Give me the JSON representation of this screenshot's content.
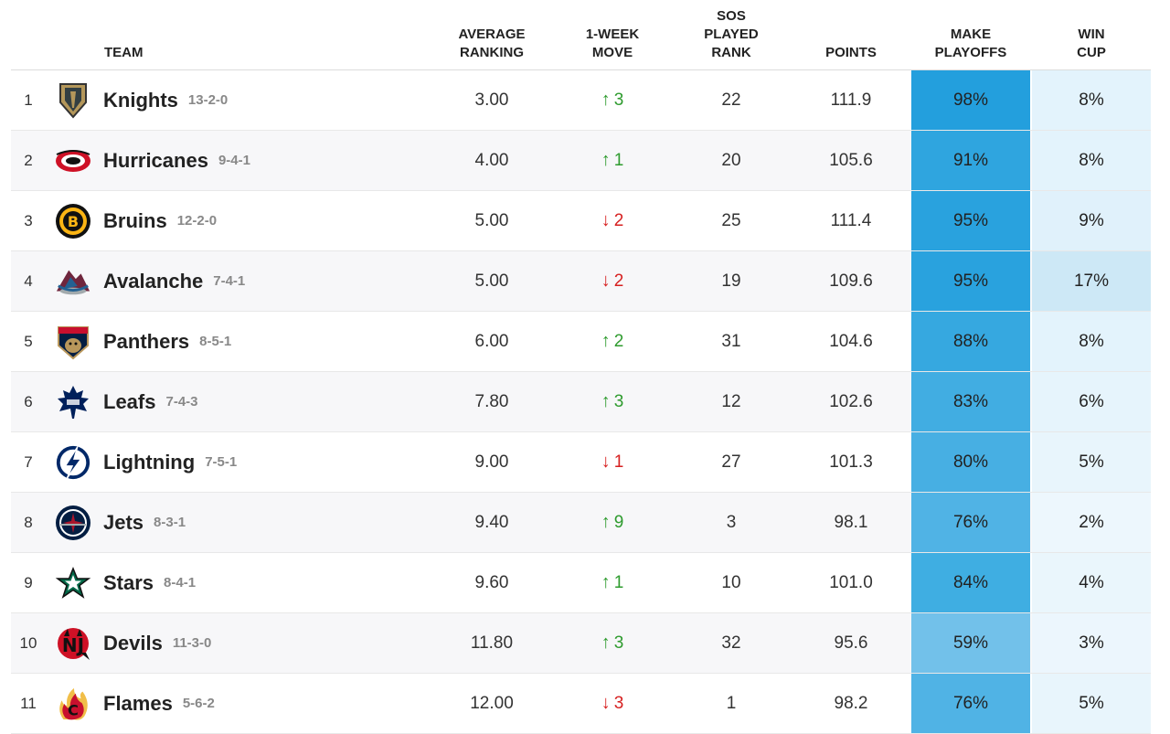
{
  "headers": {
    "team": "TEAM",
    "avg": [
      "AVERAGE",
      "RANKING"
    ],
    "move": [
      "1-WEEK",
      "MOVE"
    ],
    "sos": [
      "SOS",
      "PLAYED",
      "RANK"
    ],
    "points": "POINTS",
    "playoffs": [
      "MAKE",
      "PLAYOFFS"
    ],
    "cup": [
      "WIN",
      "CUP"
    ]
  },
  "rows": [
    {
      "rank": "1",
      "team": "Knights",
      "record": "13-2-0",
      "avg": "3.00",
      "dir": "up",
      "move": "3",
      "sos": "22",
      "points": "111.9",
      "playoffs": "98%",
      "playoffs_color": "#239fdd",
      "cup": "8%",
      "cup_color": "#e3f3fc",
      "icon": "knights-helmet-icon"
    },
    {
      "rank": "2",
      "team": "Hurricanes",
      "record": "9-4-1",
      "avg": "4.00",
      "dir": "up",
      "move": "1",
      "sos": "20",
      "points": "105.6",
      "playoffs": "91%",
      "playoffs_color": "#2fa5df",
      "cup": "8%",
      "cup_color": "#e3f3fc",
      "icon": "hurricanes-logo-icon"
    },
    {
      "rank": "3",
      "team": "Bruins",
      "record": "12-2-0",
      "avg": "5.00",
      "dir": "down",
      "move": "2",
      "sos": "25",
      "points": "111.4",
      "playoffs": "95%",
      "playoffs_color": "#29a2de",
      "cup": "9%",
      "cup_color": "#e0f1fb",
      "icon": "bruins-logo-icon"
    },
    {
      "rank": "4",
      "team": "Avalanche",
      "record": "7-4-1",
      "avg": "5.00",
      "dir": "down",
      "move": "2",
      "sos": "19",
      "points": "109.6",
      "playoffs": "95%",
      "playoffs_color": "#29a2de",
      "cup": "17%",
      "cup_color": "#cde8f6",
      "icon": "avalanche-logo-icon"
    },
    {
      "rank": "5",
      "team": "Panthers",
      "record": "8-5-1",
      "avg": "6.00",
      "dir": "up",
      "move": "2",
      "sos": "31",
      "points": "104.6",
      "playoffs": "88%",
      "playoffs_color": "#36a8e0",
      "cup": "8%",
      "cup_color": "#e3f3fc",
      "icon": "panthers-logo-icon"
    },
    {
      "rank": "6",
      "team": "Leafs",
      "record": "7-4-3",
      "avg": "7.80",
      "dir": "up",
      "move": "3",
      "sos": "12",
      "points": "102.6",
      "playoffs": "83%",
      "playoffs_color": "#41ade2",
      "cup": "6%",
      "cup_color": "#e6f4fc",
      "icon": "leafs-logo-icon"
    },
    {
      "rank": "7",
      "team": "Lightning",
      "record": "7-5-1",
      "avg": "9.00",
      "dir": "down",
      "move": "1",
      "sos": "27",
      "points": "101.3",
      "playoffs": "80%",
      "playoffs_color": "#47afe3",
      "cup": "5%",
      "cup_color": "#e8f5fc",
      "icon": "lightning-logo-icon"
    },
    {
      "rank": "8",
      "team": "Jets",
      "record": "8-3-1",
      "avg": "9.40",
      "dir": "up",
      "move": "9",
      "sos": "3",
      "points": "98.1",
      "playoffs": "76%",
      "playoffs_color": "#50b3e5",
      "cup": "2%",
      "cup_color": "#edf7fd",
      "icon": "jets-logo-icon"
    },
    {
      "rank": "9",
      "team": "Stars",
      "record": "8-4-1",
      "avg": "9.60",
      "dir": "up",
      "move": "1",
      "sos": "10",
      "points": "101.0",
      "playoffs": "84%",
      "playoffs_color": "#3faee2",
      "cup": "4%",
      "cup_color": "#eaf6fc",
      "icon": "stars-logo-icon"
    },
    {
      "rank": "10",
      "team": "Devils",
      "record": "11-3-0",
      "avg": "11.80",
      "dir": "up",
      "move": "3",
      "sos": "32",
      "points": "95.6",
      "playoffs": "59%",
      "playoffs_color": "#72c1ea",
      "cup": "3%",
      "cup_color": "#ecf6fd",
      "icon": "devils-logo-icon"
    },
    {
      "rank": "11",
      "team": "Flames",
      "record": "5-6-2",
      "avg": "12.00",
      "dir": "down",
      "move": "3",
      "sos": "1",
      "points": "98.2",
      "playoffs": "76%",
      "playoffs_color": "#50b3e5",
      "cup": "5%",
      "cup_color": "#e8f5fc",
      "icon": "flames-logo-icon"
    }
  ]
}
